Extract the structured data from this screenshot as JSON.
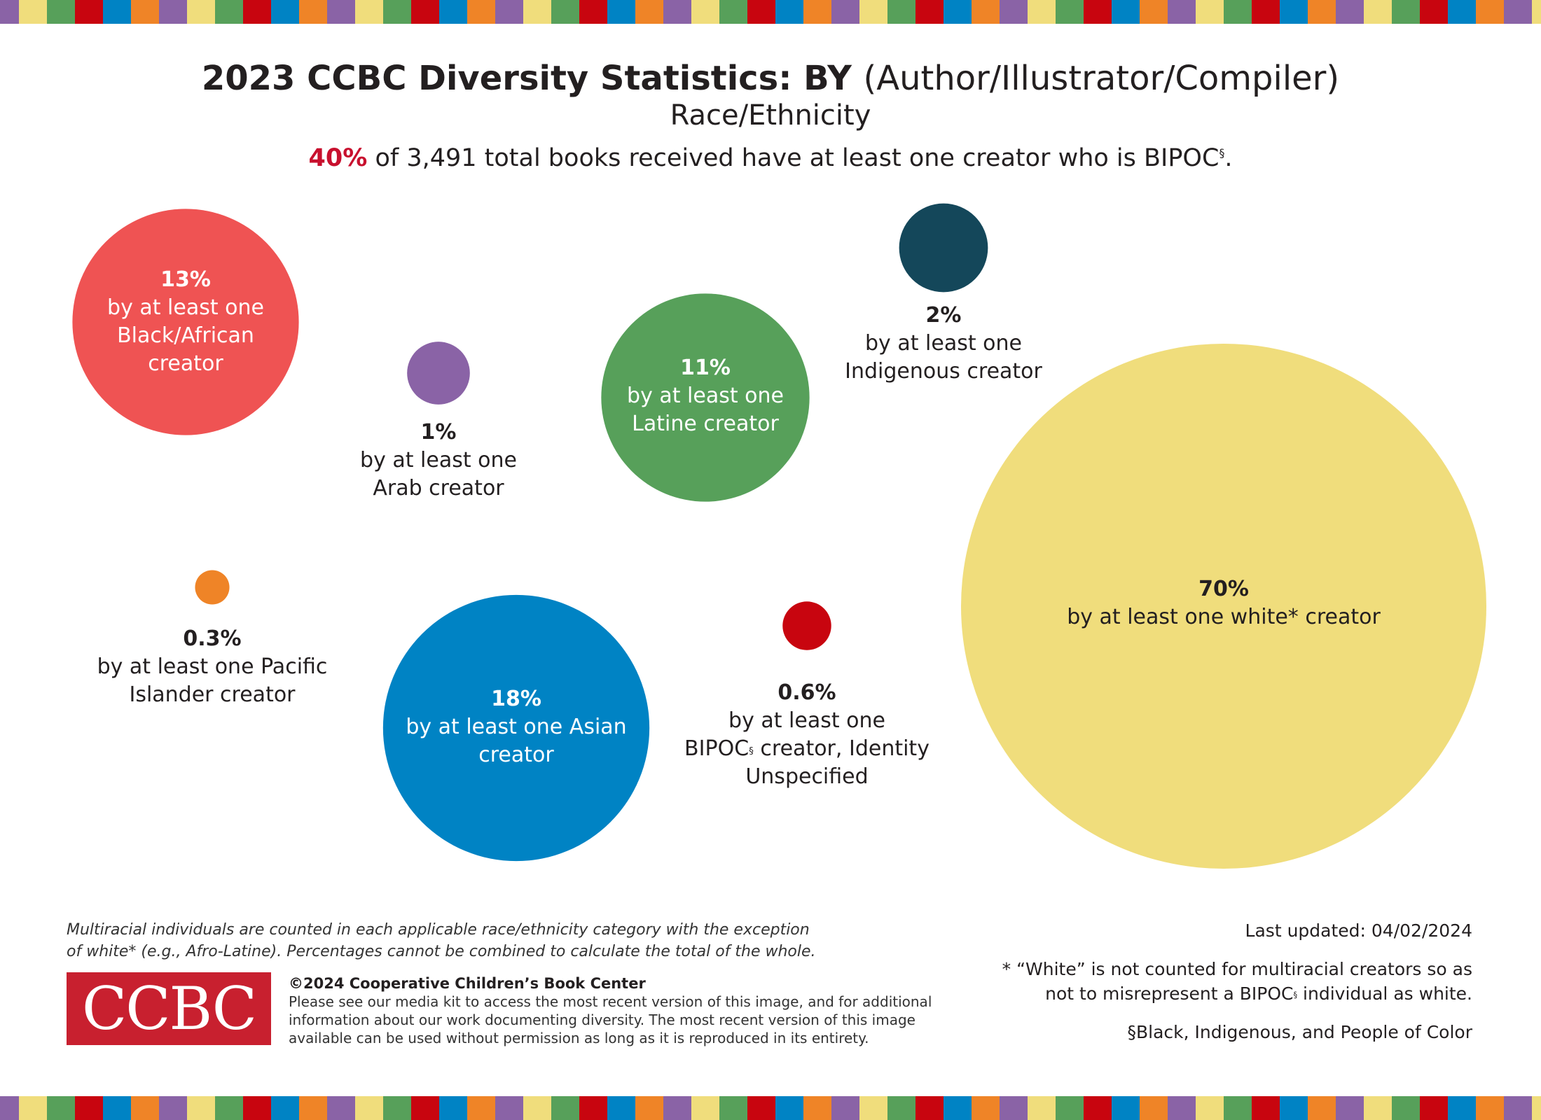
{
  "colors": {
    "stripe": [
      "#8a63a6",
      "#f0dd7c",
      "#57a05a",
      "#c8050f",
      "#0083c4",
      "#ef8427"
    ]
  },
  "header": {
    "title_bold": "2023 CCBC Diversity Statistics: BY",
    "title_light": "(Author/Illustrator/Compiler)",
    "subtitle": "Race/Ethnicity",
    "headline_pct": "40%",
    "headline_text": "of 3,491 total books received have at least one creator who is BIPOC",
    "headline_sup": "§",
    "headline_end": "."
  },
  "chart_data": {
    "type": "scatter",
    "encoding": "bubble area proportional to percent",
    "unit": "%",
    "series": [
      {
        "category": "Black/African",
        "value": 13,
        "pct": "13%",
        "lines": [
          "by at least one",
          "Black/African",
          "creator"
        ],
        "color": "#ef5353"
      },
      {
        "category": "Arab",
        "value": 1,
        "pct": "1%",
        "lines": [
          "by at least one",
          "Arab creator"
        ],
        "color": "#8a63a6"
      },
      {
        "category": "Latine",
        "value": 11,
        "pct": "11%",
        "lines": [
          "by at least one",
          "Latine creator"
        ],
        "color": "#57a05a"
      },
      {
        "category": "Indigenous",
        "value": 2,
        "pct": "2%",
        "lines": [
          "by at least one",
          "Indigenous creator"
        ],
        "color": "#14475a"
      },
      {
        "category": "white",
        "value": 70,
        "pct": "70%",
        "lines": [
          "by at least one white* creator"
        ],
        "color": "#f0dd7c"
      },
      {
        "category": "Pacific Islander",
        "value": 0.3,
        "pct": "0.3%",
        "lines": [
          "by at least one Pacific",
          "Islander creator"
        ],
        "color": "#ef8427"
      },
      {
        "category": "Asian",
        "value": 18,
        "pct": "18%",
        "lines": [
          "by at least one Asian",
          "creator"
        ],
        "color": "#0083c4"
      },
      {
        "category": "BIPOC, Identity Unspecified",
        "value": 0.6,
        "pct": "0.6%",
        "lines": [
          "by at least one",
          "BIPOC§ creator, Identity",
          "Unspecified"
        ],
        "color": "#c8050f"
      }
    ]
  },
  "footer": {
    "note_lines": [
      "Multiracial individuals are counted in each applicable race/ethnicity category with the exception",
      "of white* (e.g., Afro-Latine). Percentages cannot be combined to calculate the total of the whole."
    ],
    "logo_text": "CCBC",
    "copyright": "©2024 Cooperative Children’s Book Center",
    "copy_lines": [
      "Please see our media kit to access the most recent version of this image, and for additional",
      "information about our work documenting diversity. The most recent version of this image",
      "available can be used without permission as long as it is reproduced in its entirety."
    ],
    "last_updated": "Last updated:  04/02/2024",
    "white_note_lines": [
      "* “White” is not counted for multiracial creators so as",
      "not to misrepresent a BIPOC§ individual as white."
    ],
    "bipoc_def": "§Black, Indigenous, and People of Color"
  }
}
